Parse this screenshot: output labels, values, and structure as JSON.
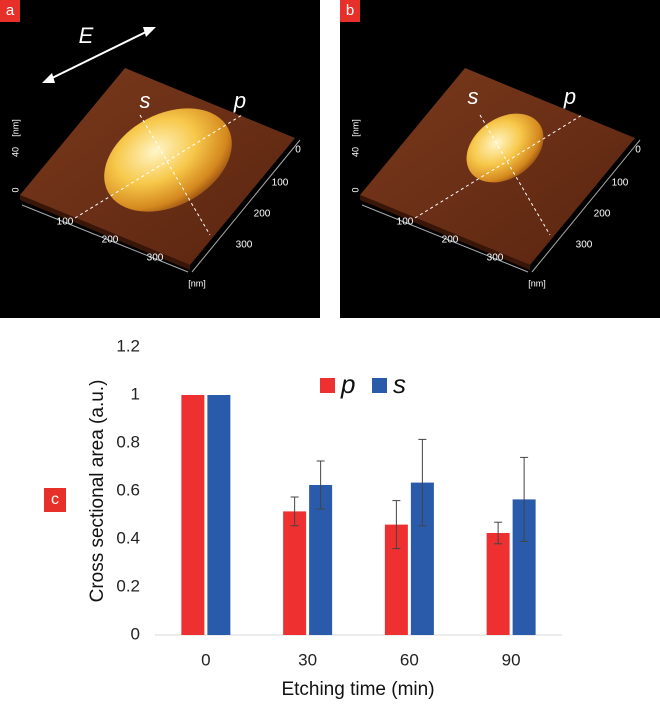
{
  "panels": [
    {
      "label": "a",
      "polarization": "E",
      "axes": [
        "s",
        "p"
      ],
      "z_ticks": [
        0,
        40
      ],
      "z_unit": "[nm]",
      "x_ticks": [
        100,
        200,
        300
      ],
      "y_ticks": [
        0,
        100,
        200,
        300
      ],
      "xy_unit": "[nm]"
    },
    {
      "label": "b",
      "axes": [
        "s",
        "p"
      ],
      "z_ticks": [
        0,
        40
      ],
      "z_unit": "[nm]",
      "x_ticks": [
        100,
        200,
        300
      ],
      "y_ticks": [
        0,
        100,
        200,
        300
      ],
      "xy_unit": "[nm]"
    }
  ],
  "chart_data": {
    "type": "bar",
    "panel_label": "c",
    "x_label": "Etching time (min)",
    "y_label": "Cross sectional area (a.u.)",
    "categories": [
      "0",
      "30",
      "60",
      "90"
    ],
    "series": [
      {
        "name": "p",
        "color": "#ee3030",
        "values": [
          1,
          0.515,
          0.46,
          0.425
        ],
        "errors": [
          null,
          0.06,
          0.1,
          0.045
        ]
      },
      {
        "name": "s",
        "color": "#2a5aaa",
        "values": [
          1,
          0.625,
          0.635,
          0.565
        ],
        "errors": [
          null,
          0.1,
          0.18,
          0.175
        ]
      }
    ],
    "ylim": [
      0,
      1.2
    ],
    "yticks": [
      0,
      0.2,
      0.4,
      0.6,
      0.8,
      1,
      1.2
    ]
  }
}
